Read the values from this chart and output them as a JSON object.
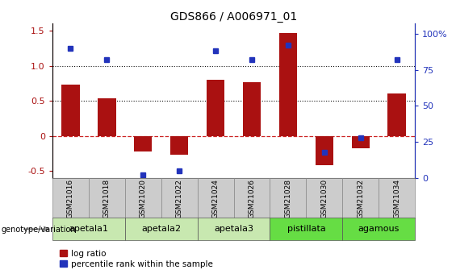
{
  "title": "GDS866 / A006971_01",
  "samples": [
    "GSM21016",
    "GSM21018",
    "GSM21020",
    "GSM21022",
    "GSM21024",
    "GSM21026",
    "GSM21028",
    "GSM21030",
    "GSM21032",
    "GSM21034"
  ],
  "log_ratio": [
    0.73,
    0.53,
    -0.22,
    -0.27,
    0.8,
    0.77,
    1.47,
    -0.42,
    -0.18,
    0.6
  ],
  "percentile_rank": [
    90,
    82,
    2,
    5,
    88,
    82,
    92,
    18,
    28,
    82
  ],
  "groups": [
    {
      "label": "apetala1",
      "samples": [
        0,
        1
      ],
      "color": "#c8e8b0"
    },
    {
      "label": "apetala2",
      "samples": [
        2,
        3
      ],
      "color": "#c8e8b0"
    },
    {
      "label": "apetala3",
      "samples": [
        4,
        5
      ],
      "color": "#c8e8b0"
    },
    {
      "label": "pistillata",
      "samples": [
        6,
        7
      ],
      "color": "#66dd44"
    },
    {
      "label": "agamous",
      "samples": [
        8,
        9
      ],
      "color": "#66dd44"
    }
  ],
  "ylim_left": [
    -0.6,
    1.6
  ],
  "ylim_right": [
    0,
    107
  ],
  "yticks_left": [
    -0.5,
    0.0,
    0.5,
    1.0,
    1.5
  ],
  "yticks_right": [
    0,
    25,
    50,
    75,
    100
  ],
  "bar_color": "#aa1111",
  "dot_color": "#2233bb",
  "hline_color": "#cc2222",
  "dotted_line_color": "#111111",
  "sample_box_color": "#cccccc",
  "sample_box_edge": "#888888"
}
